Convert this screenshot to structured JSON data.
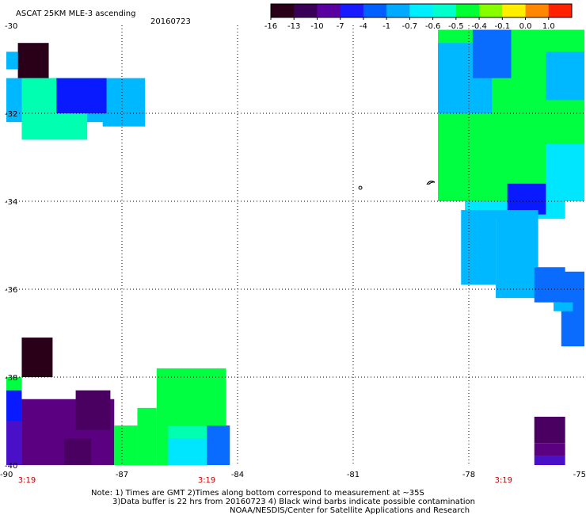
{
  "header": {
    "title": "ASCAT 25KM MLE-3 ascending",
    "date": "20160723"
  },
  "colorbar": {
    "labels": [
      "-16",
      "-13",
      "-10",
      "-7",
      "-4",
      "-1",
      "-0.7",
      "-0.6",
      "-0.5",
      "-0.4",
      "-0.1",
      "0.0",
      "1.0"
    ],
    "colors": [
      "#2a0018",
      "#3a0058",
      "#5a00a0",
      "#1a1aff",
      "#0060ff",
      "#00aaff",
      "#00eeff",
      "#00ffcc",
      "#00ff33",
      "#88ff00",
      "#ffee00",
      "#ff8800",
      "#ff2200"
    ]
  },
  "chart_data": {
    "type": "heatmap",
    "title": "ASCAT 25KM MLE-3 ascending",
    "xlim": [
      -90,
      -75
    ],
    "ylim": [
      -40,
      -30
    ],
    "x_ticks": [
      "-90",
      "-87",
      "-84",
      "-81",
      "-78",
      "-75"
    ],
    "y_ticks": [
      "-30",
      "-32",
      "-34",
      "-36",
      "-38",
      "-40"
    ],
    "time_labels": [
      {
        "lon": -90,
        "text": "3:19"
      },
      {
        "lon": -84.8,
        "text": "3:19"
      },
      {
        "lon": -77.1,
        "text": "3:19"
      }
    ],
    "grid": true,
    "colors": {
      "dark": "#2a0018",
      "purple": "#4a0060",
      "violet": "#5a0080",
      "indigo": "#4a10c8",
      "blue": "#0a1aff",
      "mid_blue": "#0a6cff",
      "sky": "#00b8ff",
      "aqua": "#00e6ff",
      "cyan_green": "#00ffb0",
      "green": "#00ff40"
    },
    "regions": [
      {
        "lon": [
          -89.7,
          -88.9
        ],
        "lat": [
          -30.4,
          -31.2
        ],
        "color": "dark"
      },
      {
        "lon": [
          -90,
          -89.7
        ],
        "lat": [
          -30.6,
          -31.0
        ],
        "color": "sky"
      },
      {
        "lon": [
          -90,
          -86.4
        ],
        "lat": [
          -31.2,
          -32.2
        ],
        "color": "sky"
      },
      {
        "lon": [
          -89.6,
          -87.9
        ],
        "lat": [
          -31.2,
          -32.6
        ],
        "color": "cyan_green"
      },
      {
        "lon": [
          -88.7,
          -87.4
        ],
        "lat": [
          -31.2,
          -32.0
        ],
        "color": "blue"
      },
      {
        "lon": [
          -87.5,
          -86.4
        ],
        "lat": [
          -32.0,
          -32.3
        ],
        "color": "sky"
      },
      {
        "lon": [
          -78.8,
          -75
        ],
        "lat": [
          -30.1,
          -34.0
        ],
        "color": "green"
      },
      {
        "lon": [
          -78.8,
          -77.4
        ],
        "lat": [
          -30.4,
          -32.0
        ],
        "color": "sky"
      },
      {
        "lon": [
          -77.9,
          -76.9
        ],
        "lat": [
          -30.1,
          -31.2
        ],
        "color": "mid_blue"
      },
      {
        "lon": [
          -76.0,
          -75
        ],
        "lat": [
          -30.6,
          -31.7
        ],
        "color": "sky"
      },
      {
        "lon": [
          -76.0,
          -75
        ],
        "lat": [
          -32.7,
          -34.0
        ],
        "color": "aqua"
      },
      {
        "lon": [
          -78.1,
          -75.5
        ],
        "lat": [
          -34.0,
          -34.4
        ],
        "color": "aqua"
      },
      {
        "lon": [
          -77.0,
          -76.0
        ],
        "lat": [
          -33.6,
          -34.3
        ],
        "color": "blue"
      },
      {
        "lon": [
          -78.2,
          -77.3
        ],
        "lat": [
          -34.2,
          -35.9
        ],
        "color": "sky"
      },
      {
        "lon": [
          -77.3,
          -76.2
        ],
        "lat": [
          -34.2,
          -36.2
        ],
        "color": "sky"
      },
      {
        "lon": [
          -76.3,
          -75.5
        ],
        "lat": [
          -35.5,
          -36.3
        ],
        "color": "mid_blue"
      },
      {
        "lon": [
          -75.6,
          -75
        ],
        "lat": [
          -35.6,
          -37.3
        ],
        "color": "mid_blue"
      },
      {
        "lon": [
          -75.8,
          -75.3
        ],
        "lat": [
          -36.3,
          -36.5
        ],
        "color": "sky"
      },
      {
        "lon": [
          -89.6,
          -88.8
        ],
        "lat": [
          -37.1,
          -38.0
        ],
        "color": "dark"
      },
      {
        "lon": [
          -90,
          -89.6
        ],
        "lat": [
          -38.0,
          -38.3
        ],
        "color": "green"
      },
      {
        "lon": [
          -90,
          -89.6
        ],
        "lat": [
          -38.3,
          -39.0
        ],
        "color": "blue"
      },
      {
        "lon": [
          -89.6,
          -87.2
        ],
        "lat": [
          -38.5,
          -40.0
        ],
        "color": "violet"
      },
      {
        "lon": [
          -90,
          -89.6
        ],
        "lat": [
          -39.0,
          -40.0
        ],
        "color": "indigo"
      },
      {
        "lon": [
          -88.2,
          -87.3
        ],
        "lat": [
          -38.3,
          -39.2
        ],
        "color": "purple"
      },
      {
        "lon": [
          -88.5,
          -87.8
        ],
        "lat": [
          -39.4,
          -40.0
        ],
        "color": "purple"
      },
      {
        "lon": [
          -86.1,
          -84.3
        ],
        "lat": [
          -37.8,
          -40.0
        ],
        "color": "green"
      },
      {
        "lon": [
          -86.6,
          -86.1
        ],
        "lat": [
          -38.7,
          -40.0
        ],
        "color": "green"
      },
      {
        "lon": [
          -87.2,
          -86.6
        ],
        "lat": [
          -39.1,
          -40.0
        ],
        "color": "green"
      },
      {
        "lon": [
          -85.8,
          -84.4
        ],
        "lat": [
          -39.1,
          -39.4
        ],
        "color": "cyan_green"
      },
      {
        "lon": [
          -85.8,
          -84.8
        ],
        "lat": [
          -39.4,
          -40.0
        ],
        "color": "aqua"
      },
      {
        "lon": [
          -84.8,
          -84.2
        ],
        "lat": [
          -39.1,
          -40.0
        ],
        "color": "mid_blue"
      },
      {
        "lon": [
          -76.3,
          -75.5
        ],
        "lat": [
          -38.9,
          -39.5
        ],
        "color": "purple"
      },
      {
        "lon": [
          -76.3,
          -75.5
        ],
        "lat": [
          -39.5,
          -39.8
        ],
        "color": "violet"
      },
      {
        "lon": [
          -76.3,
          -75.5
        ],
        "lat": [
          -39.8,
          -40.0
        ],
        "color": "indigo"
      }
    ]
  },
  "footer": {
    "line1": "Note: 1) Times are GMT 2)Times along bottom correspond to measurement at ~35S",
    "line2": "3)Data buffer is 22 hrs from 20160723 4) Black wind barbs indicate possible contamination",
    "line3": "NOAA/NESDIS/Center for Satellite Applications and Research"
  }
}
